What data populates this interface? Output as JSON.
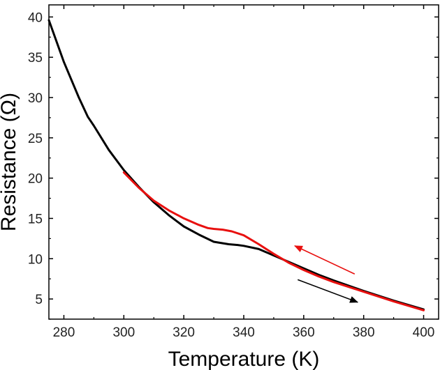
{
  "chart_data": {
    "type": "line",
    "xlabel": "Temperature (K)",
    "ylabel": "Resistance (Ω)",
    "xlim": [
      275,
      405
    ],
    "ylim": [
      2.5,
      41.5
    ],
    "xticks": [
      280,
      300,
      320,
      340,
      360,
      380,
      400
    ],
    "yticks": [
      5,
      10,
      15,
      20,
      25,
      30,
      35,
      40
    ],
    "grid": false,
    "legend": "none",
    "series": [
      {
        "color": "#000000",
        "x": [
          275,
          280,
          285,
          288,
          290,
          295,
          300,
          305,
          310,
          315,
          320,
          325,
          330,
          335,
          338,
          340,
          345,
          350,
          355,
          360,
          365,
          370,
          380,
          390,
          400
        ],
        "y": [
          39.6,
          34.4,
          30.0,
          27.6,
          26.5,
          23.5,
          21.0,
          18.9,
          17.0,
          15.4,
          14.0,
          13.0,
          12.1,
          11.8,
          11.7,
          11.6,
          11.2,
          10.4,
          9.6,
          8.8,
          8.0,
          7.3,
          6.0,
          4.8,
          3.7
        ]
      },
      {
        "color": "#e8100f",
        "x": [
          300,
          305,
          310,
          315,
          320,
          325,
          328,
          330,
          333,
          336,
          340,
          345,
          350,
          355,
          360,
          365,
          370,
          380,
          390,
          400
        ],
        "y": [
          20.7,
          18.8,
          17.2,
          16.0,
          15.0,
          14.2,
          13.8,
          13.7,
          13.6,
          13.4,
          12.9,
          11.8,
          10.6,
          9.5,
          8.6,
          7.8,
          7.1,
          5.9,
          4.7,
          3.6
        ]
      }
    ],
    "annotations": [
      {
        "type": "arrow",
        "color": "#e8100f",
        "direction": "left-up",
        "from": [
          377,
          8.1
        ],
        "to": [
          357,
          11.6
        ]
      },
      {
        "type": "arrow",
        "color": "#000000",
        "direction": "right-down",
        "from": [
          358,
          7.4
        ],
        "to": [
          378,
          4.6
        ]
      }
    ]
  }
}
